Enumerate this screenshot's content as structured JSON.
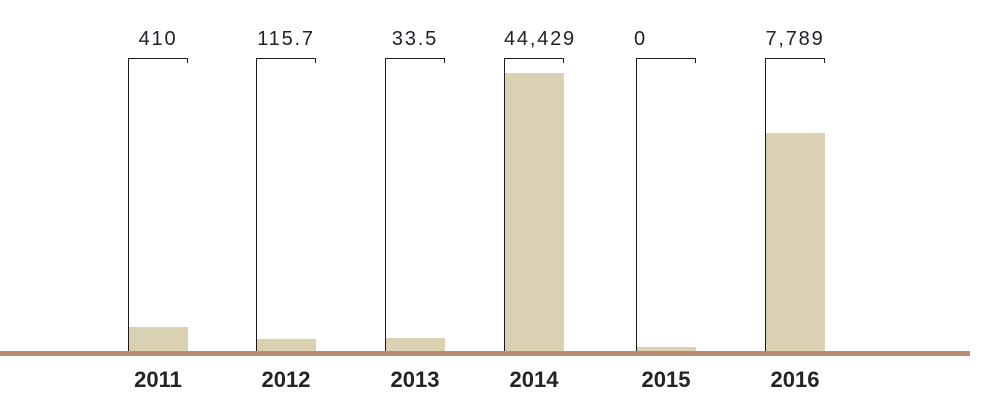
{
  "chart_data": {
    "type": "bar",
    "title": "",
    "xlabel": "",
    "ylabel": "",
    "categories": [
      "2011",
      "2012",
      "2013",
      "2014",
      "2015",
      "2016"
    ],
    "values": [
      410,
      115.7,
      33.5,
      44429,
      0,
      7789
    ],
    "value_labels": [
      "410",
      "115.7",
      "33.5",
      "44,429",
      "0",
      "7,789"
    ],
    "bar_height_fractions": [
      0.082,
      0.041,
      0.044,
      0.949,
      0.015,
      0.744
    ],
    "layout": {
      "grid": false,
      "legend": false,
      "value_labels_position": "above-bars",
      "axis_style": "individual bracket axis per bar (left line, top cap, small end tick)",
      "baseline": "single thick horizontal line under all bars"
    },
    "colors": {
      "bar": "#d9d1b1",
      "baseline": "#bc8d70",
      "axis": "#1c1c1c",
      "value_label_text": "#20222b",
      "year_label_text": "#262228",
      "background": "#ffffff"
    }
  }
}
